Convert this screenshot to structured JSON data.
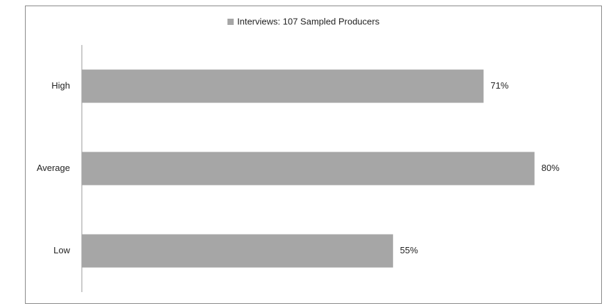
{
  "chart_data": {
    "type": "bar",
    "orientation": "horizontal",
    "categories": [
      "High",
      "Average",
      "Low"
    ],
    "series": [
      {
        "name": "Interviews: 107 Sampled Producers",
        "color": "#a6a6a6",
        "values": [
          71,
          80,
          55
        ],
        "value_labels": [
          "71%",
          "80%",
          "55%"
        ]
      }
    ],
    "legend": "top"
  }
}
